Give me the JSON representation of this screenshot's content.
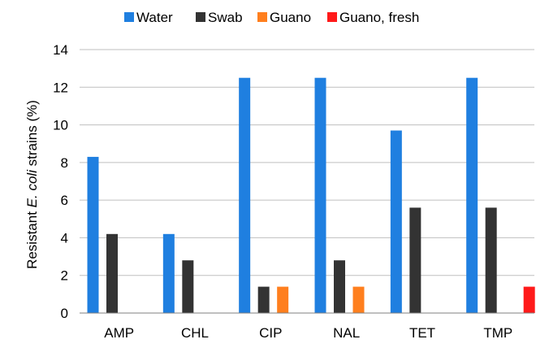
{
  "chart_data": {
    "type": "bar",
    "title": "",
    "xlabel": "",
    "ylabel_parts": [
      "Resistant ",
      "E. coli",
      " strains (%)"
    ],
    "ylim": [
      0,
      14
    ],
    "yticks": [
      0,
      2,
      4,
      6,
      8,
      10,
      12,
      14
    ],
    "grid": true,
    "legend_position": "top",
    "categories": [
      "AMP",
      "CHL",
      "CIP",
      "NAL",
      "TET",
      "TMP"
    ],
    "series": [
      {
        "name": "Water",
        "color": "#1f7fe0",
        "values": [
          8.3,
          4.2,
          12.5,
          12.5,
          9.7,
          12.5
        ]
      },
      {
        "name": "Swab",
        "color": "#333333",
        "values": [
          4.2,
          2.8,
          1.4,
          2.8,
          5.6,
          5.6
        ]
      },
      {
        "name": "Guano",
        "color": "#ff7f1e",
        "values": [
          0,
          0,
          1.4,
          1.4,
          0,
          0
        ]
      },
      {
        "name": "Guano, fresh",
        "color": "#ff1a1a",
        "values": [
          0,
          0,
          0,
          0,
          0,
          1.4
        ]
      }
    ]
  }
}
